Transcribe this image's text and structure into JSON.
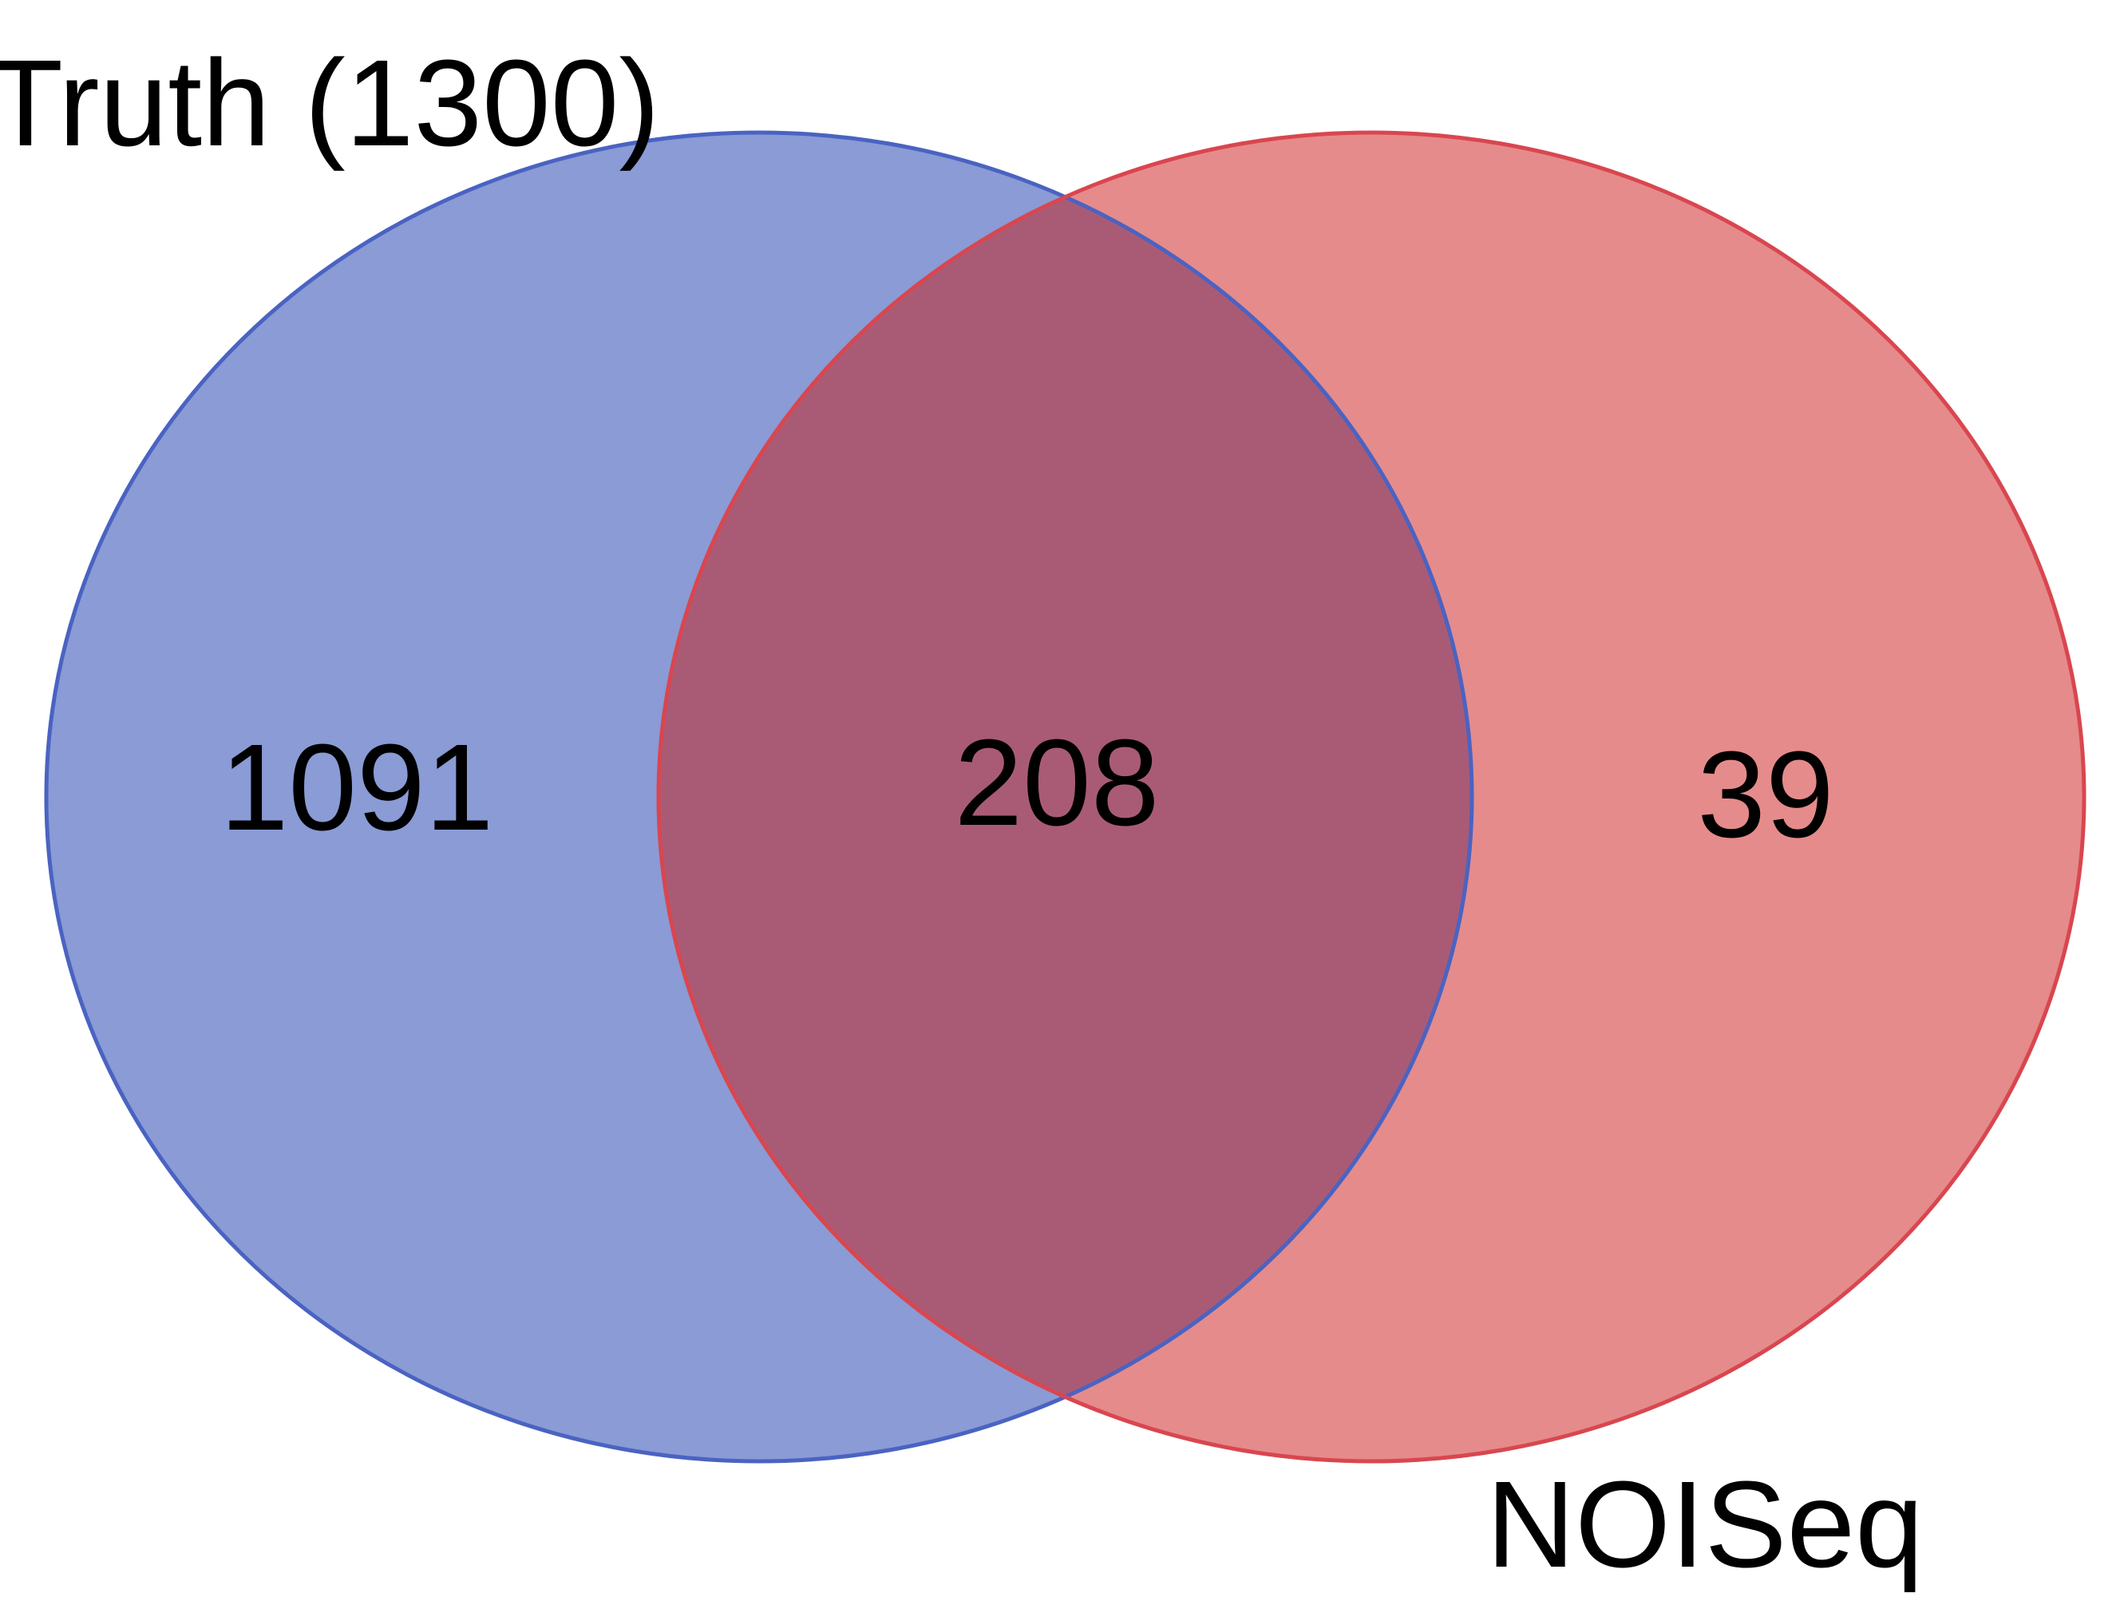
{
  "diagram": {
    "type": "venn-2",
    "sets": [
      {
        "key": "truth",
        "label": "Truth (1300)",
        "fill": "#8a9bd5",
        "stroke": "#4a63c2"
      },
      {
        "key": "noiseq",
        "label": "NOISeq",
        "fill": "#e58b8b",
        "stroke": "#d9464f"
      }
    ],
    "regions": {
      "truth_only": "1091",
      "both": "208",
      "noiseq_only": "39"
    },
    "overlap_fill": "#a95b76"
  }
}
